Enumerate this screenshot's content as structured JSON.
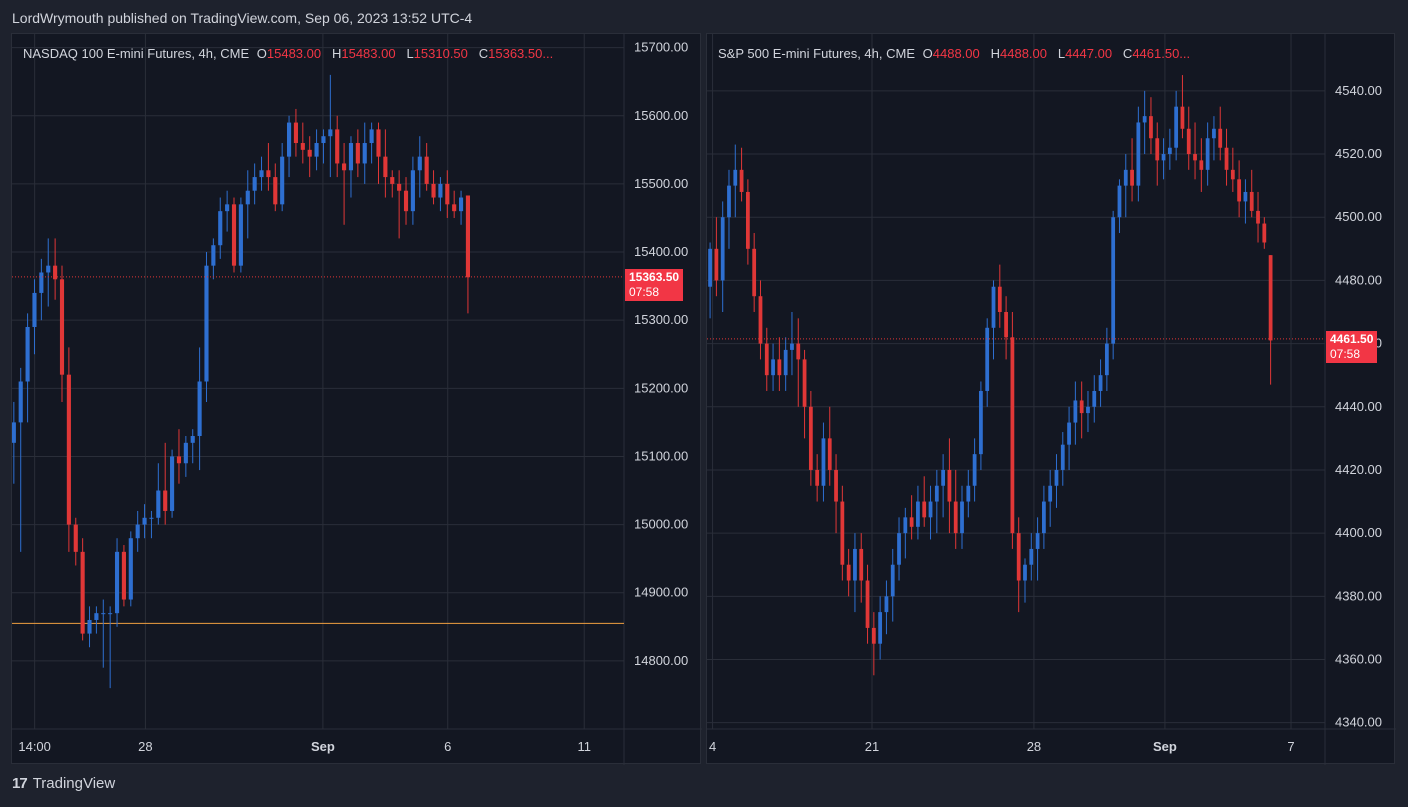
{
  "header": {
    "text": "LordWrymouth published on TradingView.com, Sep 06, 2023 13:52 UTC-4"
  },
  "footer": {
    "logo_text": "TradingView",
    "logo_icon": "tradingview-logo-icon"
  },
  "colors": {
    "up": "#2962ff",
    "up_body": "#2e6fd1",
    "down": "#e03737",
    "grid": "#2a2e39",
    "text": "#d1d4dc",
    "bg": "#131722",
    "hline": "#f0a040"
  },
  "chart_data": [
    {
      "type": "candlestick",
      "symbol": "NASDAQ 100 E-mini Futures, 4h, CME",
      "ohlc_legend": {
        "O": "15483.00",
        "H": "15483.00",
        "L": "15310.50",
        "C": "15363.50..."
      },
      "last_price": "15363.50",
      "countdown": "07:58",
      "ylim": [
        14700,
        15720
      ],
      "yticks": [
        "15700.00",
        "15600.00",
        "15500.00",
        "15400.00",
        "15300.00",
        "15200.00",
        "15100.00",
        "15000.00",
        "14900.00",
        "14800.00"
      ],
      "xticks": [
        "14:00",
        "28",
        "Sep",
        "6",
        "11"
      ],
      "horizontal_line": 14855,
      "candles": [
        [
          15120,
          15180,
          15060,
          15150
        ],
        [
          15150,
          15230,
          14960,
          15210
        ],
        [
          15210,
          15310,
          15150,
          15290
        ],
        [
          15290,
          15360,
          15250,
          15340
        ],
        [
          15340,
          15390,
          15300,
          15370
        ],
        [
          15370,
          15420,
          15320,
          15380
        ],
        [
          15380,
          15420,
          15330,
          15360
        ],
        [
          15360,
          15380,
          15180,
          15220
        ],
        [
          15220,
          15260,
          14960,
          15000
        ],
        [
          15000,
          15010,
          14940,
          14960
        ],
        [
          14960,
          14980,
          14830,
          14840
        ],
        [
          14840,
          14880,
          14820,
          14860
        ],
        [
          14860,
          14880,
          14840,
          14870
        ],
        [
          14870,
          14890,
          14790,
          14870
        ],
        [
          14870,
          14880,
          14760,
          14870
        ],
        [
          14870,
          14980,
          14850,
          14960
        ],
        [
          14960,
          14970,
          14880,
          14890
        ],
        [
          14890,
          14990,
          14880,
          14980
        ],
        [
          14980,
          15020,
          14960,
          15000
        ],
        [
          15000,
          15030,
          14980,
          15010
        ],
        [
          15010,
          15020,
          14980,
          15010
        ],
        [
          15010,
          15090,
          15000,
          15050
        ],
        [
          15050,
          15120,
          15000,
          15020
        ],
        [
          15020,
          15110,
          15010,
          15100
        ],
        [
          15100,
          15140,
          15060,
          15090
        ],
        [
          15090,
          15130,
          15070,
          15120
        ],
        [
          15120,
          15140,
          15090,
          15130
        ],
        [
          15130,
          15260,
          15080,
          15210
        ],
        [
          15210,
          15400,
          15180,
          15380
        ],
        [
          15380,
          15420,
          15360,
          15410
        ],
        [
          15410,
          15480,
          15390,
          15460
        ],
        [
          15460,
          15490,
          15430,
          15470
        ],
        [
          15470,
          15480,
          15370,
          15380
        ],
        [
          15380,
          15480,
          15370,
          15470
        ],
        [
          15470,
          15520,
          15420,
          15490
        ],
        [
          15490,
          15530,
          15470,
          15510
        ],
        [
          15510,
          15540,
          15490,
          15520
        ],
        [
          15520,
          15560,
          15490,
          15510
        ],
        [
          15510,
          15530,
          15460,
          15470
        ],
        [
          15470,
          15560,
          15460,
          15540
        ],
        [
          15540,
          15600,
          15510,
          15590
        ],
        [
          15590,
          15610,
          15540,
          15560
        ],
        [
          15560,
          15590,
          15530,
          15550
        ],
        [
          15550,
          15570,
          15510,
          15540
        ],
        [
          15540,
          15580,
          15520,
          15560
        ],
        [
          15560,
          15580,
          15530,
          15570
        ],
        [
          15570,
          15660,
          15510,
          15580
        ],
        [
          15580,
          15600,
          15510,
          15530
        ],
        [
          15530,
          15560,
          15440,
          15520
        ],
        [
          15520,
          15570,
          15480,
          15560
        ],
        [
          15560,
          15580,
          15510,
          15530
        ],
        [
          15530,
          15590,
          15500,
          15560
        ],
        [
          15560,
          15590,
          15530,
          15580
        ],
        [
          15580,
          15590,
          15500,
          15540
        ],
        [
          15540,
          15580,
          15480,
          15510
        ],
        [
          15510,
          15520,
          15480,
          15500
        ],
        [
          15500,
          15520,
          15420,
          15490
        ],
        [
          15490,
          15510,
          15440,
          15460
        ],
        [
          15460,
          15540,
          15440,
          15520
        ],
        [
          15520,
          15570,
          15480,
          15540
        ],
        [
          15540,
          15560,
          15490,
          15500
        ],
        [
          15500,
          15520,
          15470,
          15480
        ],
        [
          15480,
          15510,
          15460,
          15500
        ],
        [
          15500,
          15520,
          15450,
          15470
        ],
        [
          15470,
          15490,
          15450,
          15460
        ],
        [
          15460,
          15490,
          15440,
          15480
        ],
        [
          15483,
          15483,
          15310,
          15363
        ]
      ]
    },
    {
      "type": "candlestick",
      "symbol": "S&P 500 E-mini Futures, 4h, CME",
      "ohlc_legend": {
        "O": "4488.00",
        "H": "4488.00",
        "L": "4447.00",
        "C": "4461.50..."
      },
      "last_price": "4461.50",
      "countdown": "07:58",
      "ylim": [
        4338,
        4558
      ],
      "yticks": [
        "4540.00",
        "4520.00",
        "4500.00",
        "4480.00",
        "4460.00",
        "4440.00",
        "4420.00",
        "4400.00",
        "4380.00",
        "4360.00",
        "4340.00"
      ],
      "xticks": [
        "4",
        "21",
        "28",
        "Sep",
        "7"
      ],
      "candles": [
        [
          4478,
          4492,
          4468,
          4490
        ],
        [
          4490,
          4500,
          4475,
          4480
        ],
        [
          4480,
          4505,
          4470,
          4500
        ],
        [
          4500,
          4515,
          4490,
          4510
        ],
        [
          4510,
          4523,
          4500,
          4515
        ],
        [
          4515,
          4522,
          4505,
          4508
        ],
        [
          4508,
          4512,
          4485,
          4490
        ],
        [
          4490,
          4495,
          4470,
          4475
        ],
        [
          4475,
          4480,
          4455,
          4460
        ],
        [
          4460,
          4465,
          4445,
          4450
        ],
        [
          4450,
          4460,
          4445,
          4455
        ],
        [
          4455,
          4462,
          4445,
          4450
        ],
        [
          4450,
          4462,
          4445,
          4458
        ],
        [
          4458,
          4470,
          4450,
          4460
        ],
        [
          4460,
          4468,
          4440,
          4455
        ],
        [
          4455,
          4458,
          4430,
          4440
        ],
        [
          4440,
          4445,
          4415,
          4420
        ],
        [
          4420,
          4425,
          4410,
          4415
        ],
        [
          4415,
          4435,
          4410,
          4430
        ],
        [
          4430,
          4440,
          4415,
          4420
        ],
        [
          4420,
          4425,
          4400,
          4410
        ],
        [
          4410,
          4415,
          4385,
          4390
        ],
        [
          4390,
          4395,
          4380,
          4385
        ],
        [
          4385,
          4400,
          4375,
          4395
        ],
        [
          4395,
          4400,
          4378,
          4385
        ],
        [
          4385,
          4390,
          4365,
          4370
        ],
        [
          4370,
          4375,
          4355,
          4365
        ],
        [
          4365,
          4380,
          4360,
          4375
        ],
        [
          4375,
          4385,
          4368,
          4380
        ],
        [
          4380,
          4395,
          4372,
          4390
        ],
        [
          4390,
          4405,
          4385,
          4400
        ],
        [
          4400,
          4408,
          4392,
          4405
        ],
        [
          4405,
          4412,
          4398,
          4402
        ],
        [
          4402,
          4415,
          4398,
          4410
        ],
        [
          4410,
          4418,
          4402,
          4405
        ],
        [
          4405,
          4415,
          4398,
          4410
        ],
        [
          4410,
          4420,
          4400,
          4415
        ],
        [
          4415,
          4425,
          4405,
          4420
        ],
        [
          4420,
          4430,
          4400,
          4410
        ],
        [
          4410,
          4420,
          4395,
          4400
        ],
        [
          4400,
          4415,
          4395,
          4410
        ],
        [
          4410,
          4420,
          4405,
          4415
        ],
        [
          4415,
          4430,
          4410,
          4425
        ],
        [
          4425,
          4448,
          4420,
          4445
        ],
        [
          4445,
          4468,
          4440,
          4465
        ],
        [
          4465,
          4480,
          4455,
          4478
        ],
        [
          4478,
          4485,
          4465,
          4470
        ],
        [
          4470,
          4475,
          4455,
          4462
        ],
        [
          4462,
          4470,
          4395,
          4400
        ],
        [
          4400,
          4405,
          4375,
          4385
        ],
        [
          4385,
          4392,
          4378,
          4390
        ],
        [
          4390,
          4400,
          4385,
          4395
        ],
        [
          4395,
          4405,
          4385,
          4400
        ],
        [
          4400,
          4415,
          4395,
          4410
        ],
        [
          4410,
          4420,
          4402,
          4415
        ],
        [
          4415,
          4425,
          4408,
          4420
        ],
        [
          4420,
          4432,
          4415,
          4428
        ],
        [
          4428,
          4440,
          4420,
          4435
        ],
        [
          4435,
          4448,
          4428,
          4442
        ],
        [
          4442,
          4448,
          4430,
          4438
        ],
        [
          4438,
          4445,
          4432,
          4440
        ],
        [
          4440,
          4450,
          4435,
          4445
        ],
        [
          4445,
          4455,
          4440,
          4450
        ],
        [
          4450,
          4465,
          4445,
          4460
        ],
        [
          4460,
          4502,
          4455,
          4500
        ],
        [
          4500,
          4512,
          4495,
          4510
        ],
        [
          4510,
          4520,
          4500,
          4515
        ],
        [
          4515,
          4525,
          4505,
          4510
        ],
        [
          4510,
          4535,
          4505,
          4530
        ],
        [
          4530,
          4540,
          4520,
          4532
        ],
        [
          4532,
          4538,
          4520,
          4525
        ],
        [
          4525,
          4530,
          4510,
          4518
        ],
        [
          4518,
          4525,
          4512,
          4520
        ],
        [
          4520,
          4528,
          4515,
          4522
        ],
        [
          4522,
          4540,
          4518,
          4535
        ],
        [
          4535,
          4545,
          4525,
          4528
        ],
        [
          4528,
          4535,
          4515,
          4520
        ],
        [
          4520,
          4530,
          4512,
          4518
        ],
        [
          4518,
          4525,
          4508,
          4515
        ],
        [
          4515,
          4530,
          4510,
          4525
        ],
        [
          4525,
          4532,
          4518,
          4528
        ],
        [
          4528,
          4535,
          4518,
          4522
        ],
        [
          4522,
          4528,
          4510,
          4515
        ],
        [
          4515,
          4522,
          4508,
          4512
        ],
        [
          4512,
          4518,
          4500,
          4505
        ],
        [
          4505,
          4512,
          4498,
          4508
        ],
        [
          4508,
          4515,
          4500,
          4502
        ],
        [
          4502,
          4508,
          4492,
          4498
        ],
        [
          4498,
          4500,
          4490,
          4492
        ],
        [
          4488,
          4488,
          4447,
          4461
        ]
      ]
    }
  ]
}
